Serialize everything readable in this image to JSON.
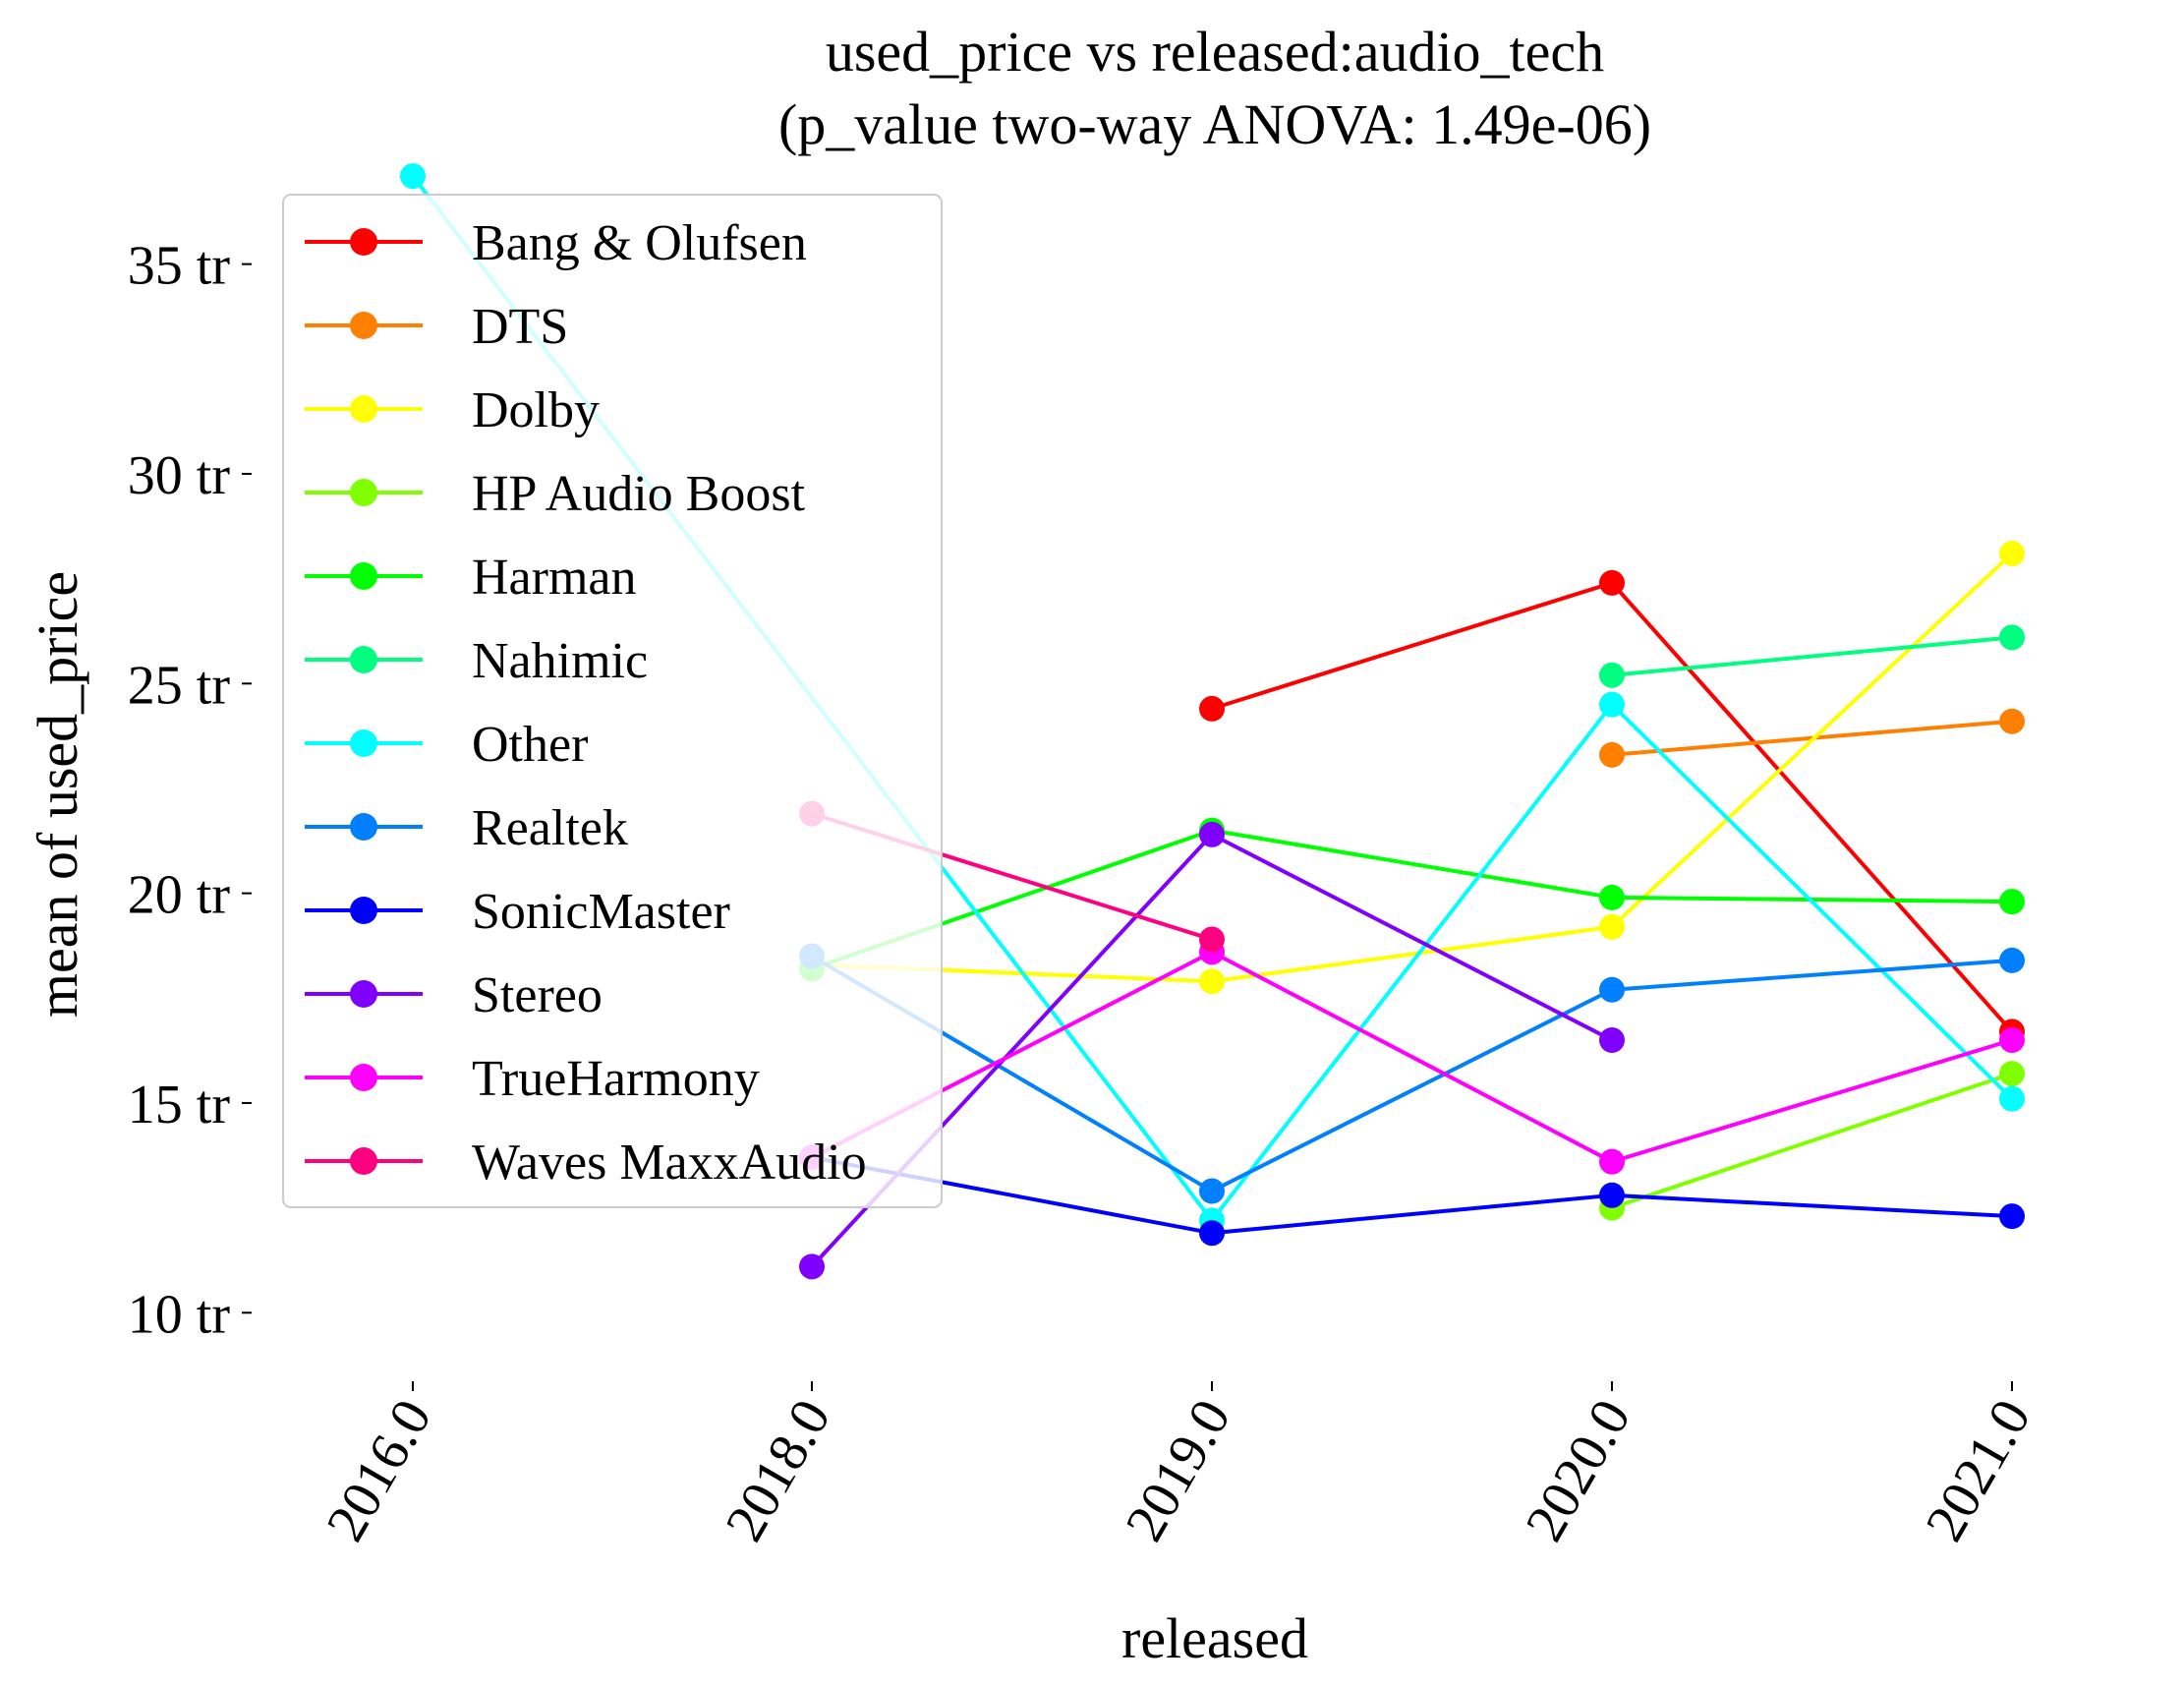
{
  "chart_data": {
    "type": "line",
    "title": "used_price vs released:audio_tech",
    "subtitle": "(p_value two-way ANOVA: 1.49e-06)",
    "xlabel": "released",
    "ylabel": "mean of used_price",
    "categories": [
      "2016.0",
      "2018.0",
      "2019.0",
      "2020.0",
      "2021.0"
    ],
    "y_ticks": [
      {
        "value": 10,
        "label": "10 tr"
      },
      {
        "value": 15,
        "label": "15 tr"
      },
      {
        "value": 20,
        "label": "20 tr"
      },
      {
        "value": 25,
        "label": "25 tr"
      },
      {
        "value": 30,
        "label": "30 tr"
      },
      {
        "value": 35,
        "label": "35 tr"
      }
    ],
    "ylim": [
      8.6,
      39.0
    ],
    "grid": false,
    "legend_position": "top-left",
    "series": [
      {
        "name": "Bang & Olufsen",
        "color": "#ff0000",
        "values": [
          null,
          null,
          24.4,
          27.4,
          16.7
        ]
      },
      {
        "name": "DTS",
        "color": "#ff8000",
        "values": [
          null,
          null,
          null,
          23.3,
          24.1
        ]
      },
      {
        "name": "Dolby",
        "color": "#ffff00",
        "values": [
          null,
          18.3,
          17.9,
          19.2,
          28.1
        ]
      },
      {
        "name": "HP Audio Boost",
        "color": "#80ff00",
        "values": [
          null,
          null,
          null,
          12.5,
          15.7
        ]
      },
      {
        "name": "Harman",
        "color": "#00ff00",
        "values": [
          null,
          18.2,
          21.5,
          19.9,
          19.8
        ]
      },
      {
        "name": "Nahimic",
        "color": "#00ff80",
        "values": [
          null,
          null,
          null,
          25.2,
          26.1
        ]
      },
      {
        "name": "Other",
        "color": "#00ffff",
        "values": [
          37.1,
          null,
          12.2,
          24.5,
          15.1
        ]
      },
      {
        "name": "Realtek",
        "color": "#0080ff",
        "values": [
          null,
          18.5,
          12.9,
          17.7,
          18.4
        ]
      },
      {
        "name": "SonicMaster",
        "color": "#0000ff",
        "values": [
          null,
          13.7,
          11.9,
          12.8,
          12.3
        ]
      },
      {
        "name": "Stereo",
        "color": "#8000ff",
        "values": [
          null,
          11.1,
          21.4,
          16.5,
          null
        ]
      },
      {
        "name": "TrueHarmony",
        "color": "#ff00ff",
        "values": [
          null,
          13.7,
          18.6,
          13.6,
          16.5
        ]
      },
      {
        "name": "Waves MaxxAudio",
        "color": "#ff0080",
        "values": [
          null,
          21.9,
          18.9,
          null,
          null
        ]
      }
    ]
  }
}
